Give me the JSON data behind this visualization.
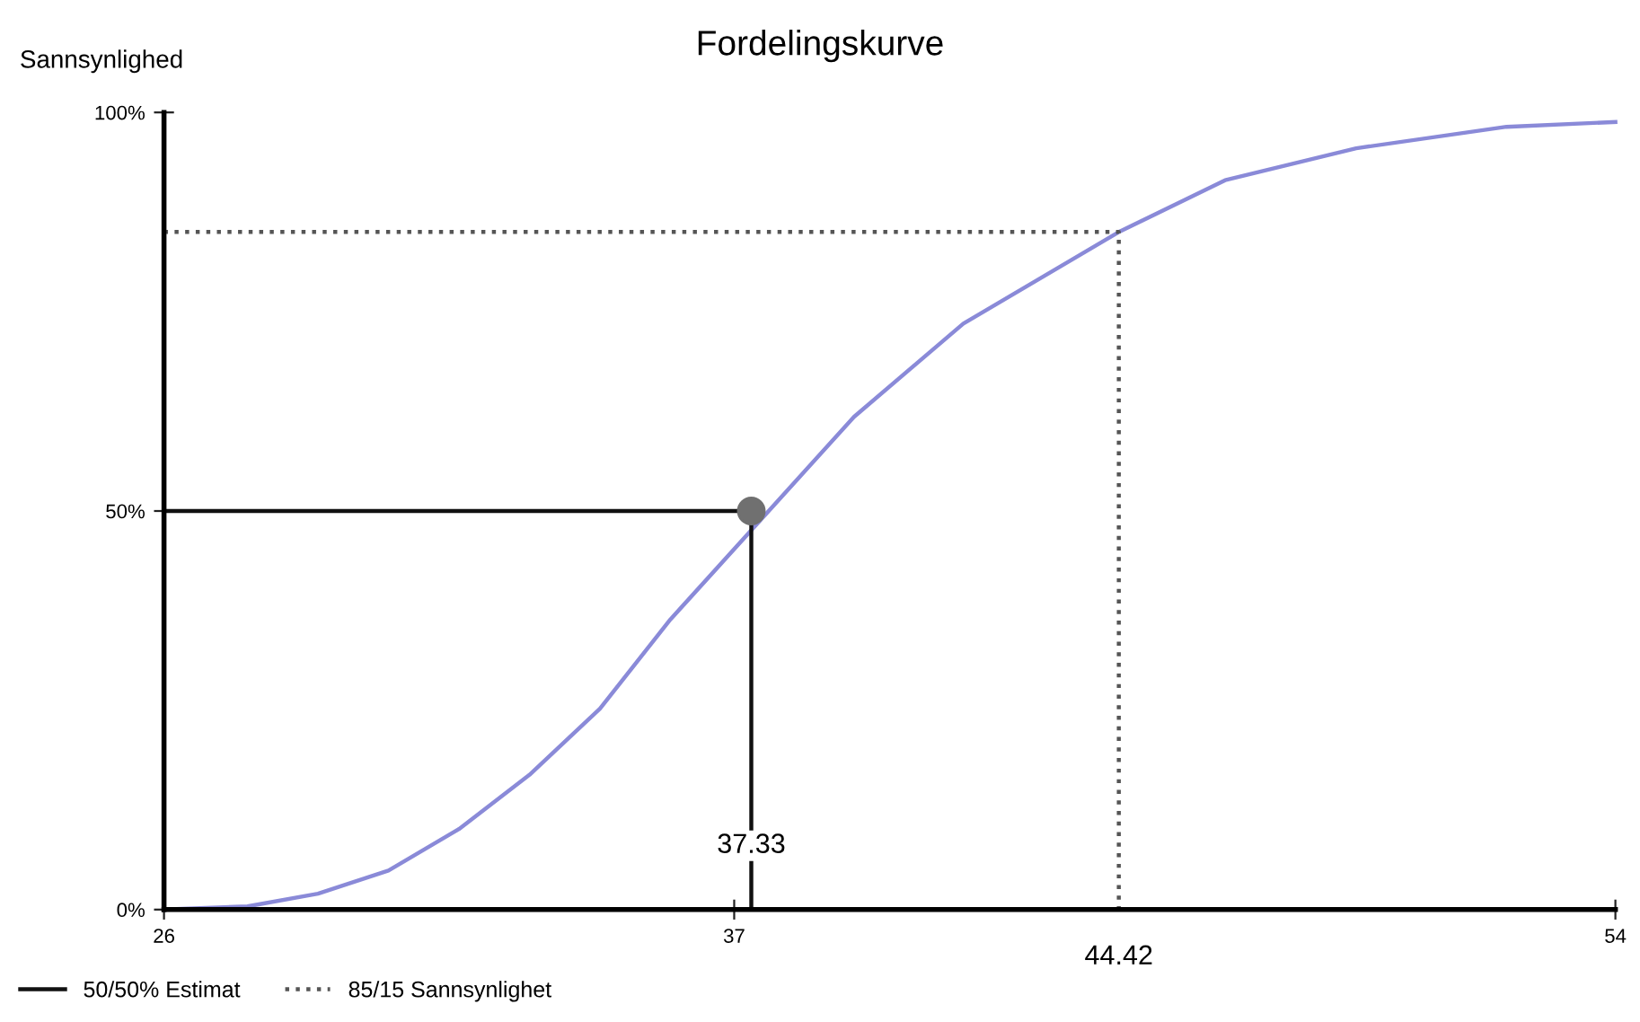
{
  "chart_data": {
    "type": "line",
    "title": "Fordelingskurve",
    "ylabel": "Sannsynlighed",
    "xlim": [
      26,
      54
    ],
    "xticks": [
      26,
      37,
      54
    ],
    "ylim": [
      0,
      100
    ],
    "yticks": [
      {
        "value": 0,
        "label": "0%"
      },
      {
        "value": 50,
        "label": "50%"
      },
      {
        "value": 100,
        "label": "100%"
      }
    ],
    "series": [
      {
        "color": "#8a8ad8",
        "x": [
          26,
          27.61,
          28.97,
          30.33,
          31.69,
          33.05,
          34.41,
          35.77,
          39.31,
          41.42,
          44.42,
          46.47,
          49.0,
          51.9,
          54
        ],
        "values": [
          0,
          0.4,
          2.0,
          4.9,
          10.1,
          16.9,
          25.2,
          36.4,
          61.8,
          73.5,
          85,
          91.5,
          95.5,
          98.2,
          98.8
        ]
      },
      {
        "name": "50/50% Estimat",
        "color": "#111111",
        "line_style": "solid",
        "x": [
          26,
          37.33,
          37.33
        ],
        "values": [
          50,
          50,
          0
        ]
      },
      {
        "name": "85/15 Sannsynlighet",
        "color": "#555555",
        "line_style": "dotted",
        "x": [
          26,
          44.42,
          44.42
        ],
        "values": [
          85,
          85,
          0
        ]
      },
      {
        "type": "scatter",
        "color": "#707070",
        "x": [
          37.33
        ],
        "values": [
          50
        ]
      }
    ],
    "annotations": [
      {
        "text": "37.33",
        "x": 37.33,
        "y": 8
      },
      {
        "text": "44.42",
        "x": 44.42,
        "y": 0
      }
    ],
    "legend": "bottom left",
    "grid": false
  }
}
